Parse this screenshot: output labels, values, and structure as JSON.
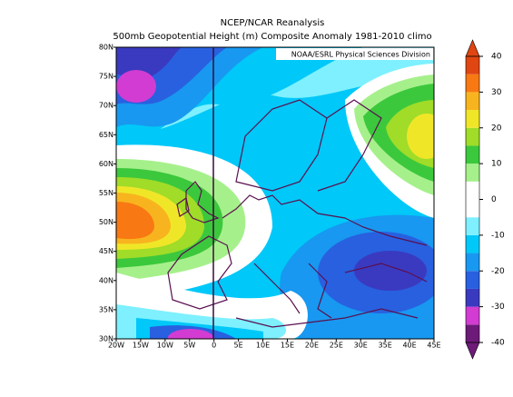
{
  "header": {
    "title": "NCEP/NCAR Reanalysis",
    "subtitle": "500mb Geopotential Height (m) Composite Anomaly 1981-2010 climo",
    "attribution": "NOAA/ESRL Physical Sciences Division"
  },
  "map": {
    "latlim": [
      30,
      80
    ],
    "lonlim": [
      -20,
      45
    ],
    "lat_ticks": [
      {
        "value": 80,
        "label": "80N"
      },
      {
        "value": 75,
        "label": "75N"
      },
      {
        "value": 70,
        "label": "70N"
      },
      {
        "value": 65,
        "label": "65N"
      },
      {
        "value": 60,
        "label": "60N"
      },
      {
        "value": 55,
        "label": "55N"
      },
      {
        "value": 50,
        "label": "50N"
      },
      {
        "value": 45,
        "label": "45N"
      },
      {
        "value": 40,
        "label": "40N"
      },
      {
        "value": 35,
        "label": "35N"
      },
      {
        "value": 30,
        "label": "30N"
      }
    ],
    "lon_ticks": [
      {
        "value": -20,
        "label": "20W"
      },
      {
        "value": -15,
        "label": "15W"
      },
      {
        "value": -10,
        "label": "10W"
      },
      {
        "value": -5,
        "label": "5W"
      },
      0,
      {
        "value": 5,
        "label": "5E"
      },
      {
        "value": 10,
        "label": "10E"
      },
      {
        "value": 15,
        "label": "15E"
      },
      {
        "value": 20,
        "label": "20E"
      },
      {
        "value": 25,
        "label": "25E"
      },
      {
        "value": 30,
        "label": "30E"
      },
      {
        "value": 35,
        "label": "35E"
      },
      {
        "value": 40,
        "label": "40E"
      },
      {
        "value": 45,
        "label": "45E"
      }
    ]
  },
  "colorbar": {
    "lim": [
      -40,
      40
    ],
    "ticks": [
      -40,
      -30,
      -20,
      -10,
      0,
      10,
      20,
      30,
      40
    ],
    "colors": [
      "#6e1a78",
      "#d23cd2",
      "#3a3ac0",
      "#2860e0",
      "#1898f0",
      "#00c8f8",
      "#7ef0ff",
      "#ffffff",
      "#ffffff",
      "#a6f08c",
      "#3cc83c",
      "#a0dc28",
      "#f0e628",
      "#f8b41e",
      "#f87814",
      "#e04612"
    ]
  }
}
